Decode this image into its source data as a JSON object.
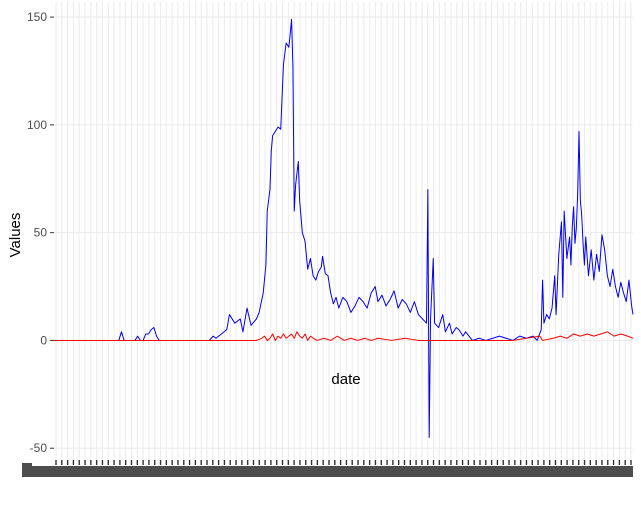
{
  "chart_data": {
    "type": "line",
    "title": "",
    "xlabel": "date",
    "ylabel": "Values",
    "ylim": [
      -55,
      157
    ],
    "y_ticks": [
      -50,
      0,
      50,
      100,
      150
    ],
    "y_tick_labels": [
      "-50",
      "0",
      "50",
      "100",
      "150"
    ],
    "grid": true,
    "legend": "none",
    "x_ticks_overplotted": true,
    "n_points": 430,
    "series": [
      {
        "color": "#0000ff",
        "keypoints": [
          [
            0,
            0
          ],
          [
            48,
            0
          ],
          [
            50,
            4
          ],
          [
            52,
            0
          ],
          [
            60,
            0
          ],
          [
            62,
            2
          ],
          [
            64,
            0
          ],
          [
            66,
            0
          ],
          [
            68,
            3
          ],
          [
            70,
            3
          ],
          [
            72,
            5
          ],
          [
            74,
            6
          ],
          [
            76,
            2
          ],
          [
            78,
            0
          ],
          [
            115,
            0
          ],
          [
            118,
            2
          ],
          [
            120,
            1
          ],
          [
            124,
            3
          ],
          [
            128,
            5
          ],
          [
            130,
            12
          ],
          [
            134,
            8
          ],
          [
            138,
            10
          ],
          [
            140,
            4
          ],
          [
            143,
            15
          ],
          [
            146,
            7
          ],
          [
            150,
            10
          ],
          [
            152,
            13
          ],
          [
            155,
            22
          ],
          [
            157,
            35
          ],
          [
            158,
            60
          ],
          [
            160,
            70
          ],
          [
            161,
            88
          ],
          [
            162,
            95
          ],
          [
            164,
            97
          ],
          [
            166,
            99
          ],
          [
            168,
            98
          ],
          [
            170,
            128
          ],
          [
            172,
            138
          ],
          [
            174,
            136
          ],
          [
            175,
            142
          ],
          [
            176,
            149
          ],
          [
            177,
            128
          ],
          [
            178,
            60
          ],
          [
            179,
            72
          ],
          [
            181,
            83
          ],
          [
            182,
            65
          ],
          [
            184,
            50
          ],
          [
            186,
            46
          ],
          [
            188,
            33
          ],
          [
            190,
            38
          ],
          [
            192,
            30
          ],
          [
            194,
            28
          ],
          [
            196,
            32
          ],
          [
            198,
            34
          ],
          [
            199,
            39
          ],
          [
            201,
            31
          ],
          [
            203,
            30
          ],
          [
            205,
            22
          ],
          [
            207,
            17
          ],
          [
            209,
            20
          ],
          [
            211,
            15
          ],
          [
            214,
            20
          ],
          [
            217,
            18
          ],
          [
            220,
            13
          ],
          [
            223,
            16
          ],
          [
            226,
            20
          ],
          [
            229,
            18
          ],
          [
            232,
            15
          ],
          [
            235,
            22
          ],
          [
            238,
            25
          ],
          [
            240,
            18
          ],
          [
            243,
            21
          ],
          [
            246,
            16
          ],
          [
            249,
            19
          ],
          [
            252,
            23
          ],
          [
            255,
            15
          ],
          [
            258,
            19
          ],
          [
            261,
            17
          ],
          [
            264,
            13
          ],
          [
            267,
            18
          ],
          [
            270,
            12
          ],
          [
            273,
            10
          ],
          [
            276,
            8
          ],
          [
            277,
            70
          ],
          [
            278,
            -45
          ],
          [
            279,
            10
          ],
          [
            281,
            38
          ],
          [
            282,
            8
          ],
          [
            285,
            6
          ],
          [
            288,
            12
          ],
          [
            290,
            4
          ],
          [
            293,
            8
          ],
          [
            295,
            3
          ],
          [
            298,
            6
          ],
          [
            300,
            5
          ],
          [
            303,
            2
          ],
          [
            305,
            4
          ],
          [
            310,
            0
          ],
          [
            315,
            1
          ],
          [
            320,
            0
          ],
          [
            325,
            1
          ],
          [
            330,
            2
          ],
          [
            335,
            1
          ],
          [
            340,
            0
          ],
          [
            345,
            2
          ],
          [
            350,
            1
          ],
          [
            355,
            2
          ],
          [
            358,
            0
          ],
          [
            361,
            5
          ],
          [
            362,
            28
          ],
          [
            363,
            8
          ],
          [
            365,
            12
          ],
          [
            367,
            10
          ],
          [
            369,
            15
          ],
          [
            371,
            30
          ],
          [
            372,
            12
          ],
          [
            374,
            40
          ],
          [
            376,
            55
          ],
          [
            377,
            20
          ],
          [
            378,
            60
          ],
          [
            380,
            38
          ],
          [
            382,
            48
          ],
          [
            383,
            35
          ],
          [
            384,
            53
          ],
          [
            385,
            62
          ],
          [
            386,
            45
          ],
          [
            387,
            52
          ],
          [
            388,
            68
          ],
          [
            389,
            97
          ],
          [
            390,
            65
          ],
          [
            391,
            58
          ],
          [
            392,
            45
          ],
          [
            393,
            35
          ],
          [
            394,
            48
          ],
          [
            396,
            30
          ],
          [
            398,
            42
          ],
          [
            400,
            28
          ],
          [
            402,
            40
          ],
          [
            404,
            32
          ],
          [
            406,
            49
          ],
          [
            408,
            42
          ],
          [
            410,
            30
          ],
          [
            412,
            25
          ],
          [
            414,
            33
          ],
          [
            416,
            25
          ],
          [
            418,
            20
          ],
          [
            420,
            27
          ],
          [
            422,
            22
          ],
          [
            424,
            18
          ],
          [
            426,
            28
          ],
          [
            428,
            16
          ],
          [
            429,
            12
          ]
        ]
      },
      {
        "color": "#ff0000",
        "keypoints": [
          [
            0,
            0
          ],
          [
            150,
            0
          ],
          [
            154,
            1
          ],
          [
            156,
            2
          ],
          [
            158,
            0
          ],
          [
            160,
            1
          ],
          [
            162,
            3
          ],
          [
            164,
            0
          ],
          [
            166,
            2
          ],
          [
            168,
            1
          ],
          [
            170,
            3
          ],
          [
            172,
            1
          ],
          [
            174,
            2
          ],
          [
            176,
            3
          ],
          [
            178,
            1
          ],
          [
            180,
            4
          ],
          [
            182,
            2
          ],
          [
            184,
            1
          ],
          [
            186,
            3
          ],
          [
            188,
            0
          ],
          [
            190,
            2
          ],
          [
            192,
            1
          ],
          [
            195,
            0
          ],
          [
            200,
            1
          ],
          [
            205,
            0
          ],
          [
            210,
            2
          ],
          [
            215,
            0
          ],
          [
            220,
            1
          ],
          [
            225,
            0
          ],
          [
            230,
            1
          ],
          [
            235,
            0
          ],
          [
            240,
            1
          ],
          [
            250,
            0
          ],
          [
            260,
            1
          ],
          [
            270,
            0
          ],
          [
            300,
            0
          ],
          [
            340,
            0
          ],
          [
            350,
            1
          ],
          [
            360,
            2
          ],
          [
            362,
            0
          ],
          [
            370,
            1
          ],
          [
            375,
            2
          ],
          [
            380,
            1
          ],
          [
            385,
            3
          ],
          [
            390,
            2
          ],
          [
            395,
            3
          ],
          [
            400,
            2
          ],
          [
            405,
            3
          ],
          [
            410,
            4
          ],
          [
            415,
            2
          ],
          [
            420,
            3
          ],
          [
            425,
            2
          ],
          [
            429,
            1
          ]
        ]
      }
    ]
  }
}
